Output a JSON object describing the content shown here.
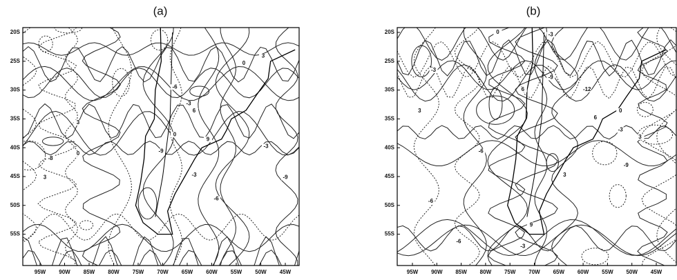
{
  "panels": [
    {
      "label": "(a)",
      "lat_labels": [
        "20S",
        "25S",
        "30S",
        "35S",
        "40S",
        "45S",
        "50S",
        "55S"
      ],
      "lon_labels": [
        "95W",
        "90W",
        "85W",
        "80W",
        "75W",
        "70W",
        "65W",
        "60W",
        "55W",
        "50W",
        "45W"
      ],
      "contour_labels": [
        "3",
        "0",
        "-3",
        "-6",
        "-9",
        "6",
        "9",
        "-3",
        "0",
        "3",
        "-6",
        "-8",
        "0",
        "3",
        "-3",
        "-9"
      ]
    },
    {
      "label": "(b)",
      "lat_labels": [
        "20S",
        "25S",
        "30S",
        "35S",
        "40S",
        "45S",
        "50S",
        "55S"
      ],
      "lon_labels": [
        "95W",
        "90W",
        "85W",
        "80W",
        "75W",
        "70W",
        "65W",
        "60W",
        "55W",
        "50W",
        "45W"
      ],
      "contour_labels": [
        "-3",
        "0",
        "3",
        "6",
        "-6",
        "-9",
        "-12",
        "-3",
        "3",
        "6",
        "-3",
        "0",
        "-6",
        "-9",
        "3",
        "-3",
        "9",
        "-6"
      ]
    }
  ]
}
